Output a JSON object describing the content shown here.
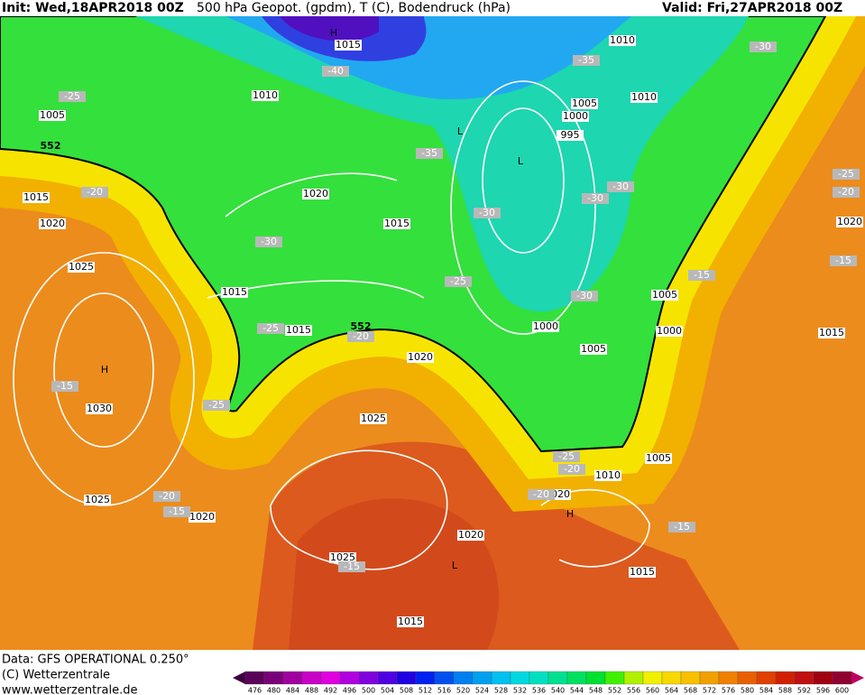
{
  "header": {
    "init": "Init: Wed,18APR2018 00Z",
    "title": "500 hPa Geopot. (gpdm), T (C), Bodendruck (hPa)",
    "valid": "Valid: Fri,27APR2018 00Z"
  },
  "map": {
    "pressure_labels": [
      1015,
      1010,
      1010,
      1010,
      1005,
      1005,
      1000,
      995,
      1020,
      1015,
      1015,
      1020,
      1025,
      1015,
      1005,
      1000,
      1015,
      1000,
      1015,
      1005,
      1020,
      1030,
      1025,
      1005,
      1010,
      1020,
      1025,
      1020,
      1020,
      1025,
      1015,
      1015,
      1020
    ],
    "temperature_labels": [
      -30,
      -35,
      -40,
      -25,
      -35,
      -20,
      -30,
      -30,
      -30,
      -30,
      -25,
      -20,
      -15,
      -25,
      -15,
      -30,
      -25,
      -20,
      -15,
      -25,
      -25,
      -20,
      -20,
      -15,
      -15,
      -15,
      -20
    ],
    "geopotential_labels": [
      552,
      552
    ],
    "highs": [
      "H",
      "H",
      "H"
    ],
    "lows": [
      "L",
      "L",
      "L"
    ]
  },
  "footer": {
    "data": "Data: GFS OPERATIONAL 0.250°",
    "copyright": "(C) Wetterzentrale",
    "url": "www.wetterzentrale.de"
  },
  "legend": {
    "ticks": [
      476,
      480,
      484,
      488,
      492,
      496,
      500,
      504,
      508,
      512,
      516,
      520,
      524,
      528,
      532,
      536,
      540,
      544,
      548,
      552,
      556,
      560,
      564,
      568,
      572,
      576,
      580,
      584,
      588,
      592,
      596,
      600
    ]
  }
}
